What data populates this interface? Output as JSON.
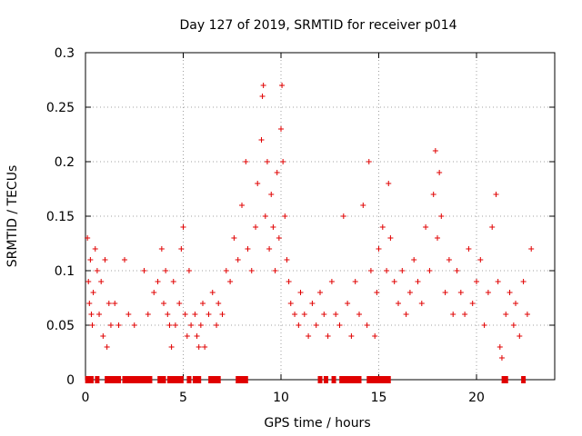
{
  "chart_data": {
    "type": "scatter",
    "title": "Day 127 of 2019, SRMTID for receiver p014",
    "xlabel": "GPS time / hours",
    "ylabel": "SRMTID / TECUs",
    "xlim": [
      0,
      24
    ],
    "ylim": [
      0,
      0.3
    ],
    "x_ticks": [
      0,
      5,
      10,
      15,
      20
    ],
    "y_ticks": [
      0,
      0.05,
      0.1,
      0.15,
      0.2,
      0.25,
      0.3
    ],
    "x_tick_labels": [
      "0",
      "5",
      "10",
      "15",
      "20"
    ],
    "y_tick_labels": [
      "0",
      "0.05",
      "0.1",
      "0.15",
      "0.2",
      "0.25",
      "0.3"
    ],
    "grid": true,
    "marker": "plus",
    "color": "#e00000",
    "series": [
      {
        "name": "SRMTID",
        "x": [
          0.1,
          0.15,
          0.2,
          0.25,
          0.3,
          0.35,
          0.4,
          0.5,
          0.6,
          0.7,
          0.8,
          0.9,
          1.0,
          1.1,
          1.2,
          1.3,
          1.5,
          1.7,
          2.0,
          2.2,
          2.5,
          3.0,
          3.2,
          3.5,
          3.7,
          3.9,
          4.0,
          4.1,
          4.2,
          4.3,
          4.4,
          4.5,
          4.6,
          4.8,
          4.9,
          5.0,
          5.1,
          5.2,
          5.3,
          5.4,
          5.6,
          5.7,
          5.8,
          5.9,
          6.0,
          6.1,
          6.3,
          6.5,
          6.7,
          6.8,
          7.0,
          7.2,
          7.4,
          7.6,
          7.8,
          8.0,
          8.2,
          8.3,
          8.5,
          8.7,
          8.8,
          9.0,
          9.05,
          9.1,
          9.2,
          9.3,
          9.4,
          9.5,
          9.6,
          9.7,
          9.8,
          9.9,
          10.0,
          10.05,
          10.1,
          10.2,
          10.3,
          10.4,
          10.5,
          10.7,
          10.9,
          11.0,
          11.2,
          11.4,
          11.6,
          11.8,
          12.0,
          12.2,
          12.4,
          12.6,
          12.8,
          13.0,
          13.2,
          13.4,
          13.6,
          13.8,
          14.0,
          14.2,
          14.4,
          14.5,
          14.6,
          14.8,
          14.9,
          15.0,
          15.2,
          15.4,
          15.5,
          15.6,
          15.8,
          16.0,
          16.2,
          16.4,
          16.6,
          16.8,
          17.0,
          17.2,
          17.4,
          17.6,
          17.8,
          17.9,
          18.0,
          18.1,
          18.2,
          18.4,
          18.6,
          18.8,
          19.0,
          19.2,
          19.4,
          19.6,
          19.8,
          20.0,
          20.2,
          20.4,
          20.6,
          20.8,
          21.0,
          21.1,
          21.2,
          21.3,
          21.5,
          21.7,
          21.9,
          22.0,
          22.2,
          22.4,
          22.6,
          22.8
        ],
        "y": [
          0.13,
          0.09,
          0.07,
          0.11,
          0.06,
          0.05,
          0.08,
          0.12,
          0.1,
          0.06,
          0.09,
          0.04,
          0.11,
          0.03,
          0.07,
          0.05,
          0.07,
          0.05,
          0.11,
          0.06,
          0.05,
          0.1,
          0.06,
          0.08,
          0.09,
          0.12,
          0.07,
          0.1,
          0.06,
          0.05,
          0.03,
          0.09,
          0.05,
          0.07,
          0.12,
          0.14,
          0.06,
          0.04,
          0.1,
          0.05,
          0.06,
          0.04,
          0.03,
          0.05,
          0.07,
          0.03,
          0.06,
          0.08,
          0.05,
          0.07,
          0.06,
          0.1,
          0.09,
          0.13,
          0.11,
          0.16,
          0.2,
          0.12,
          0.1,
          0.14,
          0.18,
          0.22,
          0.26,
          0.27,
          0.15,
          0.2,
          0.12,
          0.17,
          0.14,
          0.1,
          0.19,
          0.13,
          0.23,
          0.27,
          0.2,
          0.15,
          0.11,
          0.09,
          0.07,
          0.06,
          0.05,
          0.08,
          0.06,
          0.04,
          0.07,
          0.05,
          0.08,
          0.06,
          0.04,
          0.09,
          0.06,
          0.05,
          0.15,
          0.07,
          0.04,
          0.09,
          0.06,
          0.16,
          0.05,
          0.2,
          0.1,
          0.04,
          0.08,
          0.12,
          0.14,
          0.1,
          0.18,
          0.13,
          0.09,
          0.07,
          0.1,
          0.06,
          0.08,
          0.11,
          0.09,
          0.07,
          0.14,
          0.1,
          0.17,
          0.21,
          0.13,
          0.19,
          0.15,
          0.08,
          0.11,
          0.06,
          0.1,
          0.08,
          0.06,
          0.12,
          0.07,
          0.09,
          0.11,
          0.05,
          0.08,
          0.14,
          0.17,
          0.09,
          0.03,
          0.02,
          0.06,
          0.08,
          0.05,
          0.07,
          0.04,
          0.09,
          0.06,
          0.12
        ]
      }
    ],
    "zero_points_x": [
      0.1,
      0.3,
      0.6,
      1.1,
      1.3,
      1.5,
      1.7,
      2.0,
      2.2,
      2.4,
      2.5,
      2.6,
      2.7,
      2.8,
      2.9,
      3.0,
      3.1,
      3.3,
      3.8,
      3.9,
      4.0,
      4.3,
      4.5,
      4.7,
      4.9,
      5.3,
      5.6,
      5.8,
      6.4,
      6.6,
      6.8,
      7.8,
      8.0,
      8.2,
      12.0,
      12.3,
      12.7,
      13.1,
      13.3,
      13.4,
      13.6,
      13.7,
      13.8,
      14.0,
      14.5,
      14.7,
      14.8,
      14.9,
      15.0,
      15.1,
      15.3,
      15.5,
      21.4,
      21.5,
      22.4
    ]
  }
}
